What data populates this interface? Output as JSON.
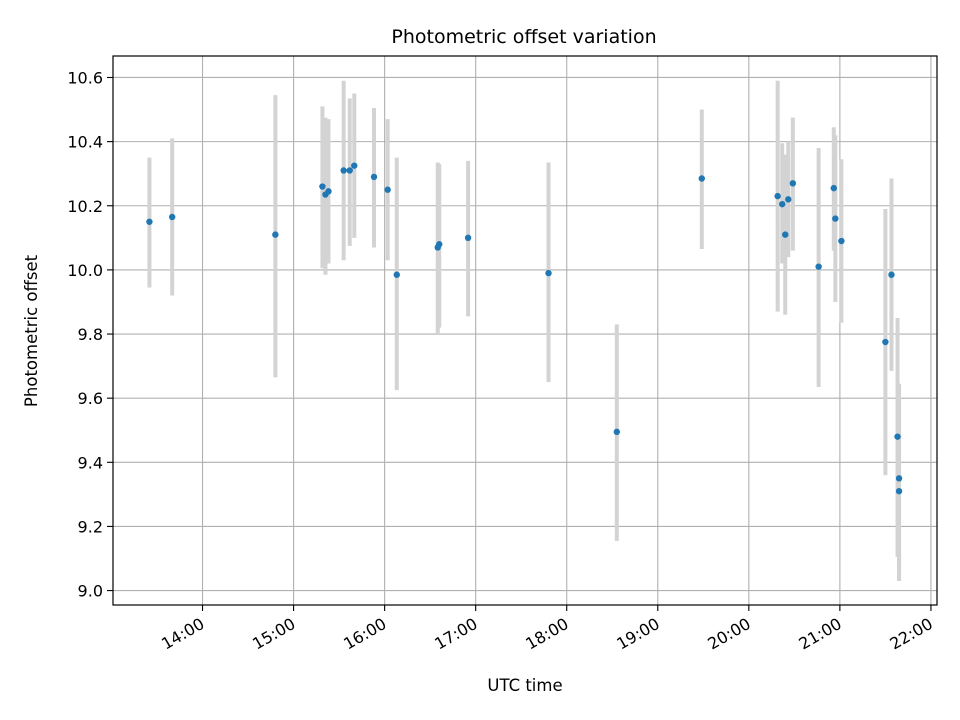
{
  "chart_data": {
    "type": "scatter",
    "title": "Photometric offset variation",
    "xlabel": "UTC time",
    "ylabel": "Photometric offset",
    "x_ticks": [
      "14:00",
      "15:00",
      "16:00",
      "17:00",
      "18:00",
      "19:00",
      "20:00",
      "21:00",
      "22:00"
    ],
    "y_ticks": [
      "9.0",
      "9.2",
      "9.4",
      "9.6",
      "9.8",
      "10.0",
      "10.2",
      "10.4",
      "10.6"
    ],
    "xlim": [
      "13:01",
      "22:04"
    ],
    "ylim": [
      8.955,
      10.667
    ],
    "grid": true,
    "colors": {
      "point": "#1f77b4",
      "errorbar": "#d3d3d3",
      "grid": "#b0b0b0"
    },
    "points": [
      {
        "x": "13:25",
        "y": 10.15,
        "ylo": 9.945,
        "yhi": 10.35
      },
      {
        "x": "13:40",
        "y": 10.165,
        "ylo": 9.92,
        "yhi": 10.41
      },
      {
        "x": "14:48",
        "y": 10.11,
        "ylo": 9.665,
        "yhi": 10.545
      },
      {
        "x": "15:19",
        "y": 10.26,
        "ylo": 10.005,
        "yhi": 10.51
      },
      {
        "x": "15:21",
        "y": 10.235,
        "ylo": 9.985,
        "yhi": 10.475
      },
      {
        "x": "15:23",
        "y": 10.245,
        "ylo": 10.02,
        "yhi": 10.47
      },
      {
        "x": "15:33",
        "y": 10.31,
        "ylo": 10.03,
        "yhi": 10.59
      },
      {
        "x": "15:37",
        "y": 10.31,
        "ylo": 10.075,
        "yhi": 10.535
      },
      {
        "x": "15:40",
        "y": 10.325,
        "ylo": 10.1,
        "yhi": 10.55
      },
      {
        "x": "15:53",
        "y": 10.29,
        "ylo": 10.07,
        "yhi": 10.505
      },
      {
        "x": "16:02",
        "y": 10.25,
        "ylo": 10.03,
        "yhi": 10.47
      },
      {
        "x": "16:08",
        "y": 9.985,
        "ylo": 9.625,
        "yhi": 10.35
      },
      {
        "x": "16:35",
        "y": 10.07,
        "ylo": 9.8,
        "yhi": 10.335
      },
      {
        "x": "16:36",
        "y": 10.08,
        "ylo": 9.82,
        "yhi": 10.33
      },
      {
        "x": "16:55",
        "y": 10.1,
        "ylo": 9.855,
        "yhi": 10.34
      },
      {
        "x": "17:48",
        "y": 9.99,
        "ylo": 9.65,
        "yhi": 10.335
      },
      {
        "x": "18:33",
        "y": 9.495,
        "ylo": 9.155,
        "yhi": 9.83
      },
      {
        "x": "19:29",
        "y": 10.285,
        "ylo": 10.065,
        "yhi": 10.5
      },
      {
        "x": "20:19",
        "y": 10.23,
        "ylo": 9.87,
        "yhi": 10.59
      },
      {
        "x": "20:22",
        "y": 10.205,
        "ylo": 10.02,
        "yhi": 10.395
      },
      {
        "x": "20:24",
        "y": 10.11,
        "ylo": 9.86,
        "yhi": 10.36
      },
      {
        "x": "20:26",
        "y": 10.22,
        "ylo": 10.04,
        "yhi": 10.4
      },
      {
        "x": "20:29",
        "y": 10.27,
        "ylo": 10.06,
        "yhi": 10.475
      },
      {
        "x": "20:46",
        "y": 10.01,
        "ylo": 9.635,
        "yhi": 10.38
      },
      {
        "x": "20:56",
        "y": 10.255,
        "ylo": 10.06,
        "yhi": 10.445
      },
      {
        "x": "20:57",
        "y": 10.16,
        "ylo": 9.9,
        "yhi": 10.42
      },
      {
        "x": "21:01",
        "y": 10.09,
        "ylo": 9.835,
        "yhi": 10.345
      },
      {
        "x": "21:30",
        "y": 9.775,
        "ylo": 9.36,
        "yhi": 10.19
      },
      {
        "x": "21:34",
        "y": 9.985,
        "ylo": 9.685,
        "yhi": 10.285
      },
      {
        "x": "21:38",
        "y": 9.48,
        "ylo": 9.105,
        "yhi": 9.85
      },
      {
        "x": "21:39",
        "y": 9.35,
        "ylo": 9.055,
        "yhi": 9.645
      },
      {
        "x": "21:39",
        "y": 9.31,
        "ylo": 9.03,
        "yhi": 9.595
      }
    ]
  }
}
